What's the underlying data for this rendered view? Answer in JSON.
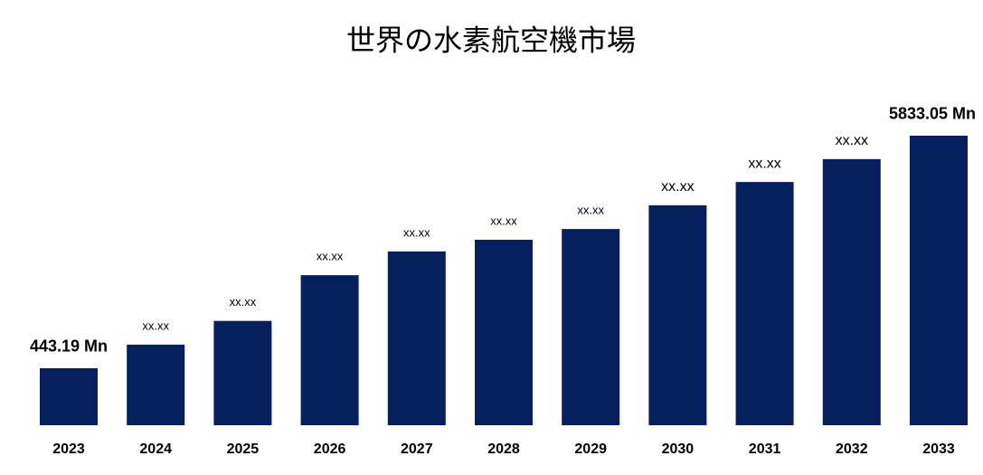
{
  "chart_data": {
    "type": "bar",
    "title": "世界の水素航空機市場",
    "categories": [
      "2023",
      "2024",
      "2025",
      "2026",
      "2027",
      "2028",
      "2029",
      "2030",
      "2031",
      "2032",
      "2033"
    ],
    "values": [
      443.19,
      990,
      1540,
      2600,
      3150,
      3420,
      3670,
      4220,
      4760,
      5290,
      5833.05
    ],
    "value_labels": [
      "443.19 Mn",
      "xx.xx",
      "xx.xx",
      "xx.xx",
      "xx.xx",
      "xx.xx",
      "xx.xx",
      "xx.xx",
      "xx.xx",
      "xx.xx",
      "5833.05 Mn"
    ],
    "color": "#06205e",
    "ylim": [
      -878,
      6000
    ]
  }
}
